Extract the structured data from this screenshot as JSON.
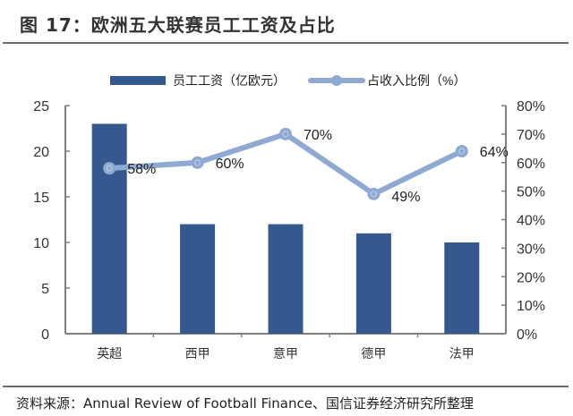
{
  "figure": {
    "title": "图 17：欧洲五大联赛员工工资及占比",
    "source": "资料来源：Annual Review of Football Finance、国信证券经济研究所整理"
  },
  "legend": {
    "bar_label": "员工工资（亿欧元）",
    "line_label": "占收入比例（%）"
  },
  "colors": {
    "bar": "#35598f",
    "line": "#8eaad3",
    "axis": "#7f7f7f",
    "text": "#222222"
  },
  "chart_data": {
    "type": "bar",
    "title": "图 17：欧洲五大联赛员工工资及占比",
    "xlabel": "",
    "ylabel": "员工工资（亿欧元）",
    "y2label": "占收入比例（%）",
    "categories": [
      "英超",
      "西甲",
      "意甲",
      "德甲",
      "法甲"
    ],
    "series": [
      {
        "name": "员工工资（亿欧元）",
        "type": "bar",
        "axis": "left",
        "values": [
          23,
          12,
          12,
          11,
          10
        ]
      },
      {
        "name": "占收入比例（%）",
        "type": "line",
        "axis": "right",
        "values": [
          58,
          60,
          70,
          49,
          64
        ],
        "data_labels": [
          "58%",
          "60%",
          "70%",
          "49%",
          "64%"
        ]
      }
    ],
    "ylim": [
      0,
      25
    ],
    "y_ticks": [
      "0",
      "5",
      "10",
      "15",
      "20",
      "25"
    ],
    "y2lim": [
      0,
      80
    ],
    "y2_ticks": [
      "0%",
      "10%",
      "20%",
      "30%",
      "40%",
      "50%",
      "60%",
      "70%",
      "80%"
    ],
    "legend_position": "top",
    "grid": false
  }
}
